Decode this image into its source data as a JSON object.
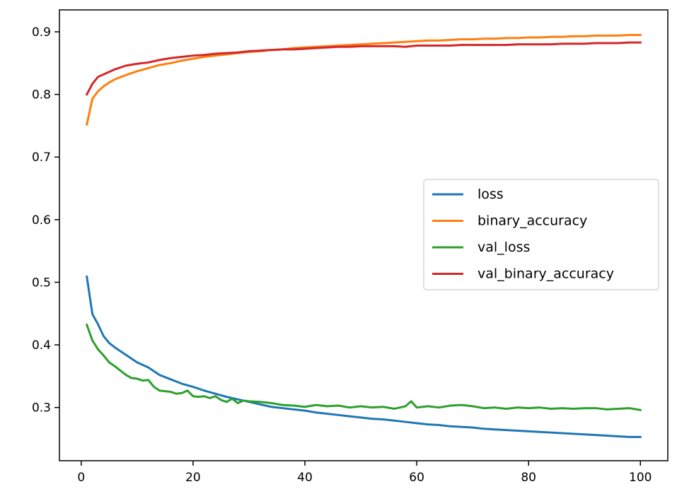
{
  "chart_data": {
    "type": "line",
    "title": "",
    "xlabel": "",
    "ylabel": "",
    "xlim": [
      -3.9,
      104.9
    ],
    "ylim": [
      0.215,
      0.935
    ],
    "x_ticks": [
      0,
      20,
      40,
      60,
      80,
      100
    ],
    "y_ticks": [
      0.3,
      0.4,
      0.5,
      0.6,
      0.7,
      0.8,
      0.9
    ],
    "grid": false,
    "legend_position": "center-right",
    "series": [
      {
        "name": "loss",
        "color": "#1f77b4",
        "points": [
          [
            1,
            0.509
          ],
          [
            2,
            0.449
          ],
          [
            3,
            0.433
          ],
          [
            4,
            0.414
          ],
          [
            5,
            0.403
          ],
          [
            6,
            0.396
          ],
          [
            8,
            0.384
          ],
          [
            10,
            0.372
          ],
          [
            12,
            0.364
          ],
          [
            14,
            0.352
          ],
          [
            16,
            0.345
          ],
          [
            18,
            0.338
          ],
          [
            20,
            0.333
          ],
          [
            22,
            0.327
          ],
          [
            24,
            0.322
          ],
          [
            26,
            0.317
          ],
          [
            28,
            0.313
          ],
          [
            30,
            0.309
          ],
          [
            32,
            0.305
          ],
          [
            34,
            0.301
          ],
          [
            36,
            0.299
          ],
          [
            38,
            0.297
          ],
          [
            40,
            0.295
          ],
          [
            42,
            0.292
          ],
          [
            44,
            0.29
          ],
          [
            46,
            0.288
          ],
          [
            48,
            0.286
          ],
          [
            50,
            0.284
          ],
          [
            52,
            0.282
          ],
          [
            54,
            0.281
          ],
          [
            56,
            0.279
          ],
          [
            58,
            0.277
          ],
          [
            60,
            0.275
          ],
          [
            62,
            0.273
          ],
          [
            64,
            0.272
          ],
          [
            66,
            0.27
          ],
          [
            68,
            0.269
          ],
          [
            70,
            0.268
          ],
          [
            72,
            0.266
          ],
          [
            74,
            0.265
          ],
          [
            76,
            0.264
          ],
          [
            78,
            0.263
          ],
          [
            80,
            0.262
          ],
          [
            82,
            0.261
          ],
          [
            84,
            0.26
          ],
          [
            86,
            0.259
          ],
          [
            88,
            0.258
          ],
          [
            90,
            0.257
          ],
          [
            92,
            0.256
          ],
          [
            94,
            0.255
          ],
          [
            96,
            0.254
          ],
          [
            98,
            0.253
          ],
          [
            100,
            0.253
          ]
        ]
      },
      {
        "name": "binary_accuracy",
        "color": "#ff7f0e",
        "points": [
          [
            1,
            0.752
          ],
          [
            2,
            0.793
          ],
          [
            3,
            0.805
          ],
          [
            4,
            0.813
          ],
          [
            5,
            0.819
          ],
          [
            6,
            0.824
          ],
          [
            8,
            0.831
          ],
          [
            10,
            0.837
          ],
          [
            12,
            0.842
          ],
          [
            14,
            0.847
          ],
          [
            16,
            0.85
          ],
          [
            18,
            0.854
          ],
          [
            20,
            0.857
          ],
          [
            22,
            0.86
          ],
          [
            24,
            0.862
          ],
          [
            26,
            0.864
          ],
          [
            28,
            0.866
          ],
          [
            30,
            0.868
          ],
          [
            32,
            0.869
          ],
          [
            34,
            0.871
          ],
          [
            36,
            0.872
          ],
          [
            38,
            0.874
          ],
          [
            40,
            0.875
          ],
          [
            42,
            0.876
          ],
          [
            44,
            0.877
          ],
          [
            46,
            0.878
          ],
          [
            48,
            0.879
          ],
          [
            50,
            0.88
          ],
          [
            52,
            0.881
          ],
          [
            54,
            0.882
          ],
          [
            56,
            0.883
          ],
          [
            58,
            0.884
          ],
          [
            60,
            0.885
          ],
          [
            62,
            0.886
          ],
          [
            64,
            0.886
          ],
          [
            66,
            0.887
          ],
          [
            68,
            0.888
          ],
          [
            70,
            0.888
          ],
          [
            72,
            0.889
          ],
          [
            74,
            0.889
          ],
          [
            76,
            0.89
          ],
          [
            78,
            0.89
          ],
          [
            80,
            0.891
          ],
          [
            82,
            0.891
          ],
          [
            84,
            0.892
          ],
          [
            86,
            0.892
          ],
          [
            88,
            0.893
          ],
          [
            90,
            0.893
          ],
          [
            92,
            0.894
          ],
          [
            94,
            0.894
          ],
          [
            96,
            0.894
          ],
          [
            98,
            0.895
          ],
          [
            100,
            0.895
          ]
        ]
      },
      {
        "name": "val_loss",
        "color": "#2ca02c",
        "points": [
          [
            1,
            0.432
          ],
          [
            2,
            0.407
          ],
          [
            3,
            0.393
          ],
          [
            4,
            0.383
          ],
          [
            5,
            0.372
          ],
          [
            6,
            0.366
          ],
          [
            7,
            0.359
          ],
          [
            8,
            0.352
          ],
          [
            9,
            0.347
          ],
          [
            10,
            0.346
          ],
          [
            11,
            0.343
          ],
          [
            12,
            0.344
          ],
          [
            13,
            0.333
          ],
          [
            14,
            0.327
          ],
          [
            15,
            0.326
          ],
          [
            16,
            0.325
          ],
          [
            17,
            0.322
          ],
          [
            18,
            0.323
          ],
          [
            19,
            0.327
          ],
          [
            20,
            0.318
          ],
          [
            21,
            0.317
          ],
          [
            22,
            0.318
          ],
          [
            23,
            0.315
          ],
          [
            24,
            0.318
          ],
          [
            25,
            0.312
          ],
          [
            26,
            0.309
          ],
          [
            27,
            0.314
          ],
          [
            28,
            0.307
          ],
          [
            29,
            0.311
          ],
          [
            30,
            0.31
          ],
          [
            32,
            0.309
          ],
          [
            34,
            0.307
          ],
          [
            36,
            0.304
          ],
          [
            38,
            0.303
          ],
          [
            40,
            0.301
          ],
          [
            42,
            0.304
          ],
          [
            44,
            0.302
          ],
          [
            46,
            0.303
          ],
          [
            48,
            0.3
          ],
          [
            50,
            0.302
          ],
          [
            52,
            0.3
          ],
          [
            54,
            0.301
          ],
          [
            56,
            0.298
          ],
          [
            58,
            0.302
          ],
          [
            59,
            0.31
          ],
          [
            60,
            0.3
          ],
          [
            62,
            0.302
          ],
          [
            64,
            0.3
          ],
          [
            66,
            0.303
          ],
          [
            68,
            0.304
          ],
          [
            70,
            0.302
          ],
          [
            72,
            0.299
          ],
          [
            74,
            0.3
          ],
          [
            76,
            0.298
          ],
          [
            78,
            0.3
          ],
          [
            80,
            0.299
          ],
          [
            82,
            0.3
          ],
          [
            84,
            0.298
          ],
          [
            86,
            0.299
          ],
          [
            88,
            0.298
          ],
          [
            90,
            0.299
          ],
          [
            92,
            0.299
          ],
          [
            94,
            0.297
          ],
          [
            96,
            0.298
          ],
          [
            98,
            0.299
          ],
          [
            100,
            0.296
          ]
        ]
      },
      {
        "name": "val_binary_accuracy",
        "color": "#d62728",
        "points": [
          [
            1,
            0.8
          ],
          [
            2,
            0.817
          ],
          [
            3,
            0.828
          ],
          [
            4,
            0.832
          ],
          [
            5,
            0.836
          ],
          [
            6,
            0.84
          ],
          [
            8,
            0.846
          ],
          [
            10,
            0.849
          ],
          [
            12,
            0.851
          ],
          [
            14,
            0.855
          ],
          [
            16,
            0.858
          ],
          [
            18,
            0.86
          ],
          [
            20,
            0.862
          ],
          [
            22,
            0.863
          ],
          [
            24,
            0.865
          ],
          [
            26,
            0.866
          ],
          [
            28,
            0.867
          ],
          [
            30,
            0.869
          ],
          [
            32,
            0.87
          ],
          [
            34,
            0.871
          ],
          [
            36,
            0.872
          ],
          [
            38,
            0.872
          ],
          [
            40,
            0.873
          ],
          [
            42,
            0.874
          ],
          [
            44,
            0.875
          ],
          [
            46,
            0.876
          ],
          [
            48,
            0.876
          ],
          [
            50,
            0.877
          ],
          [
            52,
            0.877
          ],
          [
            54,
            0.877
          ],
          [
            56,
            0.877
          ],
          [
            58,
            0.876
          ],
          [
            60,
            0.878
          ],
          [
            62,
            0.878
          ],
          [
            64,
            0.878
          ],
          [
            66,
            0.878
          ],
          [
            68,
            0.879
          ],
          [
            70,
            0.879
          ],
          [
            72,
            0.879
          ],
          [
            74,
            0.879
          ],
          [
            76,
            0.879
          ],
          [
            78,
            0.88
          ],
          [
            80,
            0.88
          ],
          [
            82,
            0.88
          ],
          [
            84,
            0.88
          ],
          [
            86,
            0.881
          ],
          [
            88,
            0.881
          ],
          [
            90,
            0.881
          ],
          [
            92,
            0.882
          ],
          [
            94,
            0.882
          ],
          [
            96,
            0.882
          ],
          [
            98,
            0.883
          ],
          [
            100,
            0.883
          ]
        ]
      }
    ]
  }
}
